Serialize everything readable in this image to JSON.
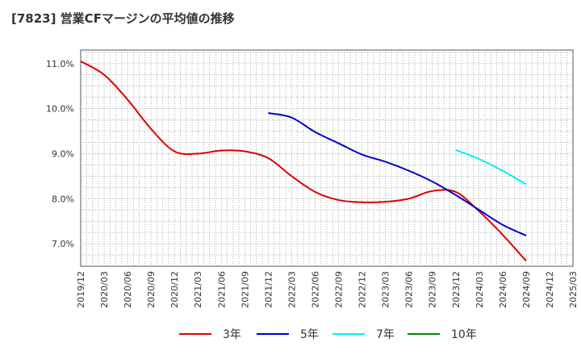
{
  "title": "[7823]  営業CFマージンの平均値の推移",
  "colors": {
    "3y": "#dd0000",
    "5y": "#0000cc",
    "7y": "#00eeee",
    "10y": "#008800",
    "grid": "#999999",
    "axis": "#555555"
  },
  "legend": [
    {
      "label": "3年",
      "color": "#dd0000"
    },
    {
      "label": "5年",
      "color": "#0000cc"
    },
    {
      "label": "7年",
      "color": "#00eeee"
    },
    {
      "label": "10年",
      "color": "#008800"
    }
  ],
  "chart_data": {
    "type": "line",
    "title": "[7823]  営業CFマージンの平均値の推移",
    "xlabel": "",
    "ylabel": "",
    "ylim": [
      6.5,
      11.3
    ],
    "yticks": [
      "7.0%",
      "8.0%",
      "9.0%",
      "10.0%",
      "11.0%"
    ],
    "ytick_values": [
      7.0,
      8.0,
      9.0,
      10.0,
      11.0
    ],
    "x_categories": [
      "2019/12",
      "2020/03",
      "2020/06",
      "2020/09",
      "2020/12",
      "2021/03",
      "2021/06",
      "2021/09",
      "2021/12",
      "2022/03",
      "2022/06",
      "2022/09",
      "2022/12",
      "2023/03",
      "2023/06",
      "2023/09",
      "2023/12",
      "2024/03",
      "2024/06",
      "2024/09",
      "2024/12",
      "2025/03"
    ],
    "grid": true,
    "legend_position": "bottom",
    "series": [
      {
        "name": "3年",
        "color": "#dd0000",
        "x": [
          "2019/12",
          "2020/03",
          "2020/06",
          "2020/09",
          "2020/12",
          "2021/03",
          "2021/06",
          "2021/09",
          "2021/12",
          "2022/03",
          "2022/06",
          "2022/09",
          "2022/12",
          "2023/03",
          "2023/06",
          "2023/09",
          "2023/12",
          "2024/03",
          "2024/06",
          "2024/09"
        ],
        "values": [
          11.05,
          10.75,
          10.2,
          9.55,
          9.05,
          9.0,
          9.07,
          9.05,
          8.9,
          8.5,
          8.15,
          7.97,
          7.92,
          7.93,
          8.0,
          8.17,
          8.15,
          7.72,
          7.2,
          6.62
        ]
      },
      {
        "name": "5年",
        "color": "#0000cc",
        "x": [
          "2021/12",
          "2022/03",
          "2022/06",
          "2022/09",
          "2022/12",
          "2023/03",
          "2023/06",
          "2023/09",
          "2023/12",
          "2024/03",
          "2024/06",
          "2024/09"
        ],
        "values": [
          9.9,
          9.8,
          9.48,
          9.23,
          8.98,
          8.82,
          8.62,
          8.38,
          8.08,
          7.75,
          7.42,
          7.18
        ]
      },
      {
        "name": "7年",
        "color": "#00eeee",
        "x": [
          "2023/12",
          "2024/03",
          "2024/06",
          "2024/09"
        ],
        "values": [
          9.08,
          8.88,
          8.62,
          8.32
        ]
      },
      {
        "name": "10年",
        "color": "#008800",
        "x": [],
        "values": []
      }
    ]
  }
}
